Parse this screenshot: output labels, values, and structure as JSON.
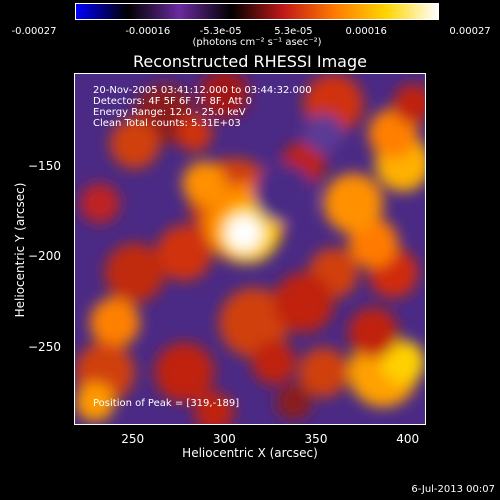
{
  "colorbar": {
    "ticks": [
      "-0.00027",
      "-0.00016",
      "-5.3e-05",
      "5.3e-05",
      "0.00016",
      "0.00027"
    ],
    "units_label": "(photons cm⁻² s⁻¹ asec⁻²)",
    "colors": [
      "#0000ff",
      "#000000",
      "#6a2aa0",
      "#000000",
      "#c01818",
      "#ff7a00",
      "#ffd500",
      "#ffffff"
    ]
  },
  "title": "Reconstructed RHESSI Image",
  "info": {
    "line1": "20-Nov-2005 03:41:12.000 to 03:44:32.000",
    "line2": "Detectors: 4F 5F 6F 7F 8F, Att 0",
    "line3": "Energy Range: 12.0 - 25.0 keV",
    "line4": "Clean     Total counts: 5.31E+03"
  },
  "peak_label": "Position of Peak = [319,-189]",
  "footer": "6-Jul-2013 00:07",
  "chart_data": {
    "type": "heatmap",
    "title": "Reconstructed RHESSI Image",
    "xlabel": "Heliocentric X (arcsec)",
    "ylabel": "Heliocentric Y (arcsec)",
    "xlim": [
      218,
      410
    ],
    "ylim": [
      -293,
      -99
    ],
    "xticks": [
      250,
      300,
      350,
      400
    ],
    "yticks": [
      -150,
      -200,
      -250
    ],
    "colorbar_range": [
      -0.00027,
      0.00027
    ],
    "peak": {
      "x": 319,
      "y": -189
    }
  }
}
